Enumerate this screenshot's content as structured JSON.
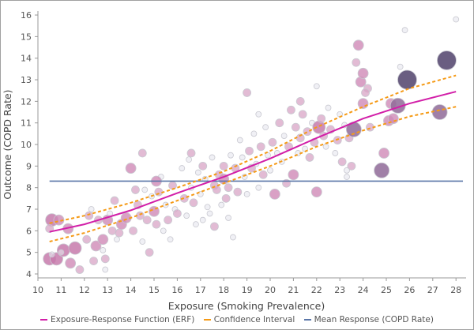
{
  "chart_data": {
    "type": "scatter",
    "xlabel": "Exposure (Smoking Prevalence)",
    "ylabel": "Outcome (COPD Rate)",
    "xlim": [
      10,
      28.5
    ],
    "ylim": [
      4,
      16
    ],
    "xticks": [
      10,
      11,
      12,
      13,
      14,
      15,
      16,
      17,
      18,
      19,
      20,
      21,
      22,
      23,
      24,
      25,
      26,
      27,
      28
    ],
    "yticks": [
      4,
      5,
      6,
      7,
      8,
      9,
      10,
      11,
      12,
      13,
      14,
      15,
      16
    ],
    "grid": false,
    "legend_placement": "bottom",
    "legend": [
      {
        "label": "Exposure-Response Function (ERF)",
        "color": "#d21fa8"
      },
      {
        "label": "Confidence Interval",
        "color": "#f59a16"
      },
      {
        "label": "Mean Response (COPD Rate)",
        "color": "#5a76a8"
      }
    ],
    "mean_response": {
      "y": 8.3,
      "x": [
        10.5,
        28.3
      ]
    },
    "erf": {
      "x": [
        10.5,
        12,
        14,
        16,
        18,
        20,
        22,
        24,
        26,
        28
      ],
      "y": [
        5.95,
        6.3,
        6.95,
        7.75,
        8.5,
        9.35,
        10.3,
        11.2,
        11.9,
        12.45
      ]
    },
    "ci_upper": {
      "x": [
        10.5,
        12,
        14,
        16,
        18,
        20,
        22,
        24,
        26,
        28
      ],
      "y": [
        6.35,
        6.7,
        7.3,
        8.0,
        8.75,
        9.7,
        10.8,
        11.75,
        12.6,
        13.2
      ]
    },
    "ci_lower": {
      "x": [
        10.5,
        12,
        14,
        16,
        18,
        20,
        22,
        24,
        26,
        28
      ],
      "y": [
        5.5,
        5.9,
        6.6,
        7.4,
        8.2,
        9.0,
        9.9,
        10.65,
        11.3,
        11.75
      ]
    },
    "point_fields": [
      "x",
      "y",
      "size"
    ],
    "points": [
      [
        10.5,
        4.7,
        3
      ],
      [
        10.8,
        4.7,
        3
      ],
      [
        10.6,
        6.5,
        3
      ],
      [
        10.9,
        6.5,
        2
      ],
      [
        11.3,
        6.1,
        2
      ],
      [
        11.1,
        5.1,
        3
      ],
      [
        11.6,
        5.2,
        3
      ],
      [
        11.4,
        4.5,
        2
      ],
      [
        10.5,
        6.1,
        1
      ],
      [
        10.6,
        4.9,
        0
      ],
      [
        11.0,
        5.0,
        0
      ],
      [
        11.8,
        4.2,
        1
      ],
      [
        12.1,
        5.6,
        1
      ],
      [
        12.2,
        6.7,
        1
      ],
      [
        12.3,
        7.0,
        0
      ],
      [
        12.5,
        5.3,
        2
      ],
      [
        12.6,
        6.5,
        1
      ],
      [
        12.8,
        5.1,
        0
      ],
      [
        12.8,
        5.6,
        2
      ],
      [
        12.9,
        4.7,
        1
      ],
      [
        13.0,
        6.5,
        2
      ],
      [
        13.2,
        6.0,
        1
      ],
      [
        13.3,
        7.4,
        1
      ],
      [
        13.5,
        5.9,
        1
      ],
      [
        13.6,
        6.3,
        2
      ],
      [
        13.8,
        6.6,
        2
      ],
      [
        12.4,
        4.6,
        1
      ],
      [
        12.9,
        4.2,
        0
      ],
      [
        13.1,
        6.8,
        0
      ],
      [
        13.4,
        5.6,
        0
      ],
      [
        14.0,
        8.9,
        2
      ],
      [
        14.1,
        6.0,
        1
      ],
      [
        14.3,
        7.2,
        1
      ],
      [
        14.4,
        6.7,
        1
      ],
      [
        14.5,
        5.5,
        0
      ],
      [
        14.6,
        7.9,
        0
      ],
      [
        14.7,
        6.5,
        1
      ],
      [
        14.8,
        5.0,
        1
      ],
      [
        14.9,
        7.6,
        0
      ],
      [
        15.0,
        6.9,
        2
      ],
      [
        15.1,
        6.3,
        1
      ],
      [
        15.2,
        7.8,
        1
      ],
      [
        15.3,
        8.5,
        0
      ],
      [
        15.4,
        6.0,
        0
      ],
      [
        15.5,
        7.2,
        0
      ],
      [
        15.6,
        6.5,
        1
      ],
      [
        15.7,
        5.6,
        0
      ],
      [
        15.8,
        8.1,
        1
      ],
      [
        15.9,
        7.0,
        0
      ],
      [
        16.0,
        6.8,
        1
      ],
      [
        14.2,
        7.9,
        1
      ],
      [
        14.5,
        9.6,
        1
      ],
      [
        15.1,
        8.3,
        2
      ],
      [
        16.2,
        8.9,
        0
      ],
      [
        16.3,
        7.5,
        1
      ],
      [
        16.4,
        6.7,
        0
      ],
      [
        16.5,
        9.3,
        0
      ],
      [
        16.6,
        8.0,
        0
      ],
      [
        16.7,
        7.3,
        1
      ],
      [
        16.8,
        6.3,
        0
      ],
      [
        16.9,
        8.7,
        0
      ],
      [
        17.0,
        7.7,
        0
      ],
      [
        17.1,
        9.0,
        1
      ],
      [
        17.2,
        8.4,
        0
      ],
      [
        17.3,
        7.1,
        0
      ],
      [
        17.4,
        6.8,
        0
      ],
      [
        17.5,
        9.4,
        0
      ],
      [
        17.6,
        8.1,
        1
      ],
      [
        17.7,
        7.9,
        1
      ],
      [
        17.8,
        8.6,
        1
      ],
      [
        17.9,
        7.2,
        0
      ],
      [
        18.0,
        8.4,
        2
      ],
      [
        18.0,
        9.0,
        1
      ],
      [
        18.1,
        7.5,
        1
      ],
      [
        18.2,
        8.0,
        1
      ],
      [
        18.2,
        6.6,
        0
      ],
      [
        18.3,
        9.5,
        0
      ],
      [
        16.6,
        9.6,
        1
      ],
      [
        17.1,
        6.5,
        0
      ],
      [
        17.6,
        6.2,
        1
      ],
      [
        18.4,
        5.7,
        0
      ],
      [
        18.5,
        8.9,
        1
      ],
      [
        18.6,
        7.8,
        1
      ],
      [
        18.7,
        10.2,
        0
      ],
      [
        18.8,
        9.4,
        0
      ],
      [
        18.9,
        8.5,
        0
      ],
      [
        19.0,
        7.7,
        0
      ],
      [
        19.1,
        9.7,
        1
      ],
      [
        19.2,
        8.9,
        1
      ],
      [
        19.3,
        10.5,
        0
      ],
      [
        19.4,
        9.1,
        0
      ],
      [
        19.5,
        8.0,
        0
      ],
      [
        19.6,
        9.9,
        1
      ],
      [
        19.7,
        8.6,
        1
      ],
      [
        19.8,
        10.8,
        0
      ],
      [
        19.9,
        9.5,
        0
      ],
      [
        20.0,
        8.8,
        0
      ],
      [
        20.1,
        10.1,
        1
      ],
      [
        20.2,
        7.7,
        2
      ],
      [
        20.3,
        9.6,
        0
      ],
      [
        20.4,
        11.0,
        1
      ],
      [
        20.5,
        9.2,
        0
      ],
      [
        20.6,
        10.4,
        0
      ],
      [
        20.7,
        8.2,
        1
      ],
      [
        20.8,
        9.9,
        1
      ],
      [
        19.0,
        12.4,
        1
      ],
      [
        19.5,
        11.4,
        0
      ],
      [
        20.9,
        11.6,
        1
      ],
      [
        21.0,
        8.6,
        2
      ],
      [
        21.1,
        10.8,
        1
      ],
      [
        21.2,
        9.6,
        0
      ],
      [
        21.3,
        10.3,
        1
      ],
      [
        21.4,
        11.4,
        1
      ],
      [
        21.5,
        9.8,
        0
      ],
      [
        21.6,
        10.6,
        1
      ],
      [
        21.7,
        9.4,
        1
      ],
      [
        21.8,
        11.0,
        0
      ],
      [
        21.9,
        10.1,
        1
      ],
      [
        22.0,
        7.8,
        2
      ],
      [
        22.1,
        10.8,
        3
      ],
      [
        22.2,
        11.2,
        1
      ],
      [
        22.3,
        10.4,
        1
      ],
      [
        22.4,
        9.9,
        0
      ],
      [
        22.5,
        11.7,
        0
      ],
      [
        22.6,
        10.7,
        1
      ],
      [
        22.8,
        9.6,
        0
      ],
      [
        22.9,
        10.2,
        1
      ],
      [
        21.3,
        12.0,
        1
      ],
      [
        22.0,
        12.7,
        0
      ],
      [
        23.0,
        11.4,
        0
      ],
      [
        23.1,
        9.2,
        1
      ],
      [
        23.2,
        10.9,
        0
      ],
      [
        23.4,
        10.3,
        1
      ],
      [
        23.5,
        9.0,
        1
      ],
      [
        23.6,
        10.7,
        4
      ],
      [
        23.7,
        13.8,
        1
      ],
      [
        23.8,
        14.6,
        2
      ],
      [
        23.9,
        12.9,
        2
      ],
      [
        24.0,
        11.9,
        2
      ],
      [
        24.0,
        13.3,
        2
      ],
      [
        24.2,
        12.6,
        1
      ],
      [
        24.3,
        10.8,
        1
      ],
      [
        24.1,
        12.4,
        1
      ],
      [
        24.8,
        8.8,
        4
      ],
      [
        24.9,
        9.6,
        2
      ],
      [
        25.1,
        11.1,
        2
      ],
      [
        25.3,
        11.2,
        2
      ],
      [
        25.2,
        11.9,
        2
      ],
      [
        25.5,
        11.8,
        4
      ],
      [
        25.6,
        13.6,
        0
      ],
      [
        25.8,
        15.3,
        0
      ],
      [
        25.9,
        13.0,
        5
      ],
      [
        27.3,
        11.5,
        4
      ],
      [
        27.6,
        13.9,
        5
      ],
      [
        28.0,
        15.8,
        0
      ],
      [
        23.3,
        8.8,
        0
      ],
      [
        23.3,
        8.5,
        0
      ]
    ]
  }
}
